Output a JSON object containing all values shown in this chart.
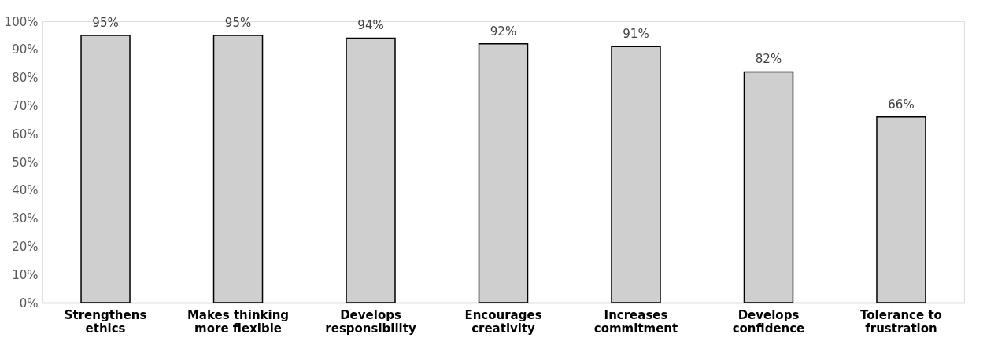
{
  "chart_data": {
    "type": "bar",
    "categories": [
      "Strengthens ethics",
      "Makes thinking more flexible",
      "Develops responsibility",
      "Encourages creativity",
      "Increases commitment",
      "Develops confidence",
      "Tolerance to frustration"
    ],
    "values": [
      95,
      95,
      94,
      92,
      91,
      82,
      66
    ],
    "value_labels": [
      "95%",
      "95%",
      "94%",
      "92%",
      "91%",
      "82%",
      "66%"
    ],
    "color": "#cfcfcf",
    "ylim": [
      0,
      100
    ],
    "yticks": [
      {
        "value": 0,
        "label": "0%"
      },
      {
        "value": 10,
        "label": "10%"
      },
      {
        "value": 20,
        "label": "20%"
      },
      {
        "value": 30,
        "label": "30%"
      },
      {
        "value": 40,
        "label": "40%"
      },
      {
        "value": 50,
        "label": "50%"
      },
      {
        "value": 60,
        "label": "60%"
      },
      {
        "value": 70,
        "label": "70%"
      },
      {
        "value": 80,
        "label": "80%"
      },
      {
        "value": 90,
        "label": "90%"
      },
      {
        "value": 100,
        "label": "100%"
      }
    ],
    "grid": false
  }
}
